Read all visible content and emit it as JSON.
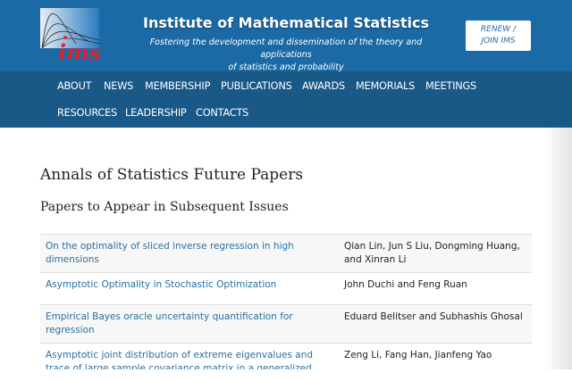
{
  "header": {
    "logo_text": "ims",
    "title": "Institute of Mathematical Statistics",
    "tagline_1": "Fostering the development and dissemination of the theory and applications",
    "tagline_2": "of statistics and probability",
    "renew_1": "RENEW /",
    "renew_2": "JOIN IMS"
  },
  "nav": [
    "ABOUT",
    "NEWS",
    "MEMBERSHIP",
    "PUBLICATIONS",
    "AWARDS",
    "MEMORIALS",
    "MEETINGS",
    "RESOURCES",
    "LEADERSHIP",
    "CONTACTS"
  ],
  "page": {
    "title": "Annals of Statistics Future Papers",
    "subtitle": "Papers to Appear in Subsequent Issues"
  },
  "papers": [
    {
      "title": "On the optimality of sliced inverse regression in high dimensions",
      "authors": "Qian Lin, Jun S Liu, Dongming Huang, and Xinran Li"
    },
    {
      "title": "Asymptotic Optimality in Stochastic Optimization",
      "authors": "John Duchi and Feng Ruan"
    },
    {
      "title": "Empirical Bayes oracle uncertainty quantification for regression",
      "authors": "Eduard Belitser and Subhashis Ghosal"
    },
    {
      "title": "Asymptotic joint distribution of extreme eigenvalues and trace of large sample covariance matrix in a generalized",
      "authors": "Zeng Li, Fang Han, Jianfeng Yao"
    }
  ]
}
